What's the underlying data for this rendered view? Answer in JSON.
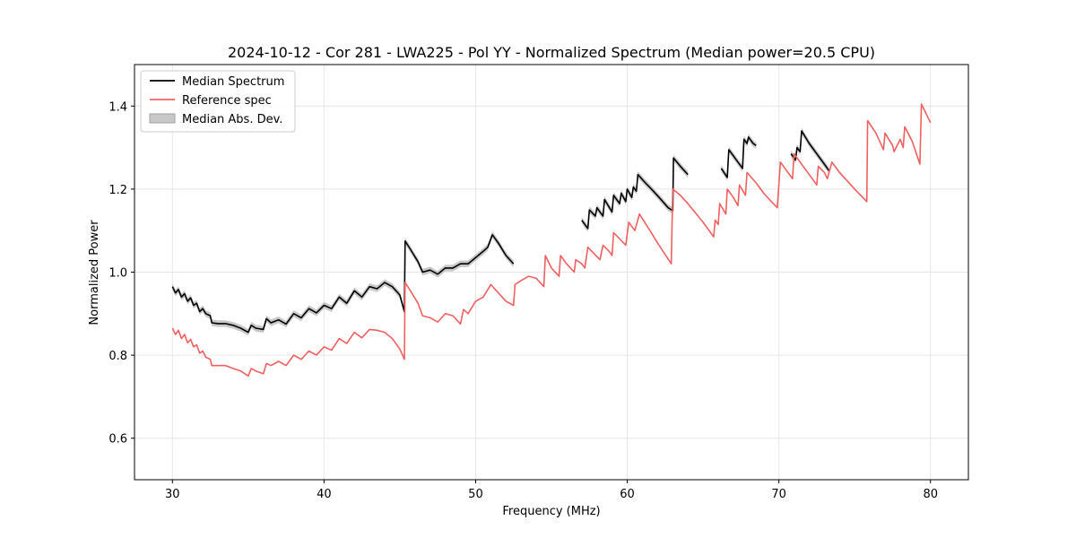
{
  "chart_data": {
    "type": "line",
    "title": "2024-10-12 - Cor 281 - LWA225 - Pol YY - Normalized Spectrum (Median power=20.5 CPU)",
    "xlabel": "Frequency (MHz)",
    "ylabel": "Normalized Power",
    "xlim": [
      27.5,
      82.5
    ],
    "ylim": [
      0.5,
      1.5
    ],
    "xticks": [
      30,
      40,
      50,
      60,
      70,
      80
    ],
    "yticks": [
      0.6,
      0.8,
      1.0,
      1.2,
      1.4
    ],
    "xtick_labels": [
      "30",
      "40",
      "50",
      "60",
      "70",
      "80"
    ],
    "ytick_labels": [
      "0.6",
      "0.8",
      "1.0",
      "1.2",
      "1.4"
    ],
    "grid": true,
    "legend": {
      "placement": "top-left",
      "entries": [
        {
          "label": "Median Spectrum",
          "kind": "line",
          "color": "#000000"
        },
        {
          "label": "Reference spec",
          "kind": "line",
          "color": "#f06060"
        },
        {
          "label": "Median Abs. Dev.",
          "kind": "band",
          "color": "#c8c8c8"
        }
      ]
    },
    "series": [
      {
        "name": "Median Spectrum",
        "color": "#000000",
        "band_color": "#c8c8c8",
        "segments": [
          [
            [
              30.0,
              0.965
            ],
            [
              30.2,
              0.95
            ],
            [
              30.4,
              0.958
            ],
            [
              30.6,
              0.94
            ],
            [
              30.8,
              0.948
            ],
            [
              31.0,
              0.93
            ],
            [
              31.2,
              0.938
            ],
            [
              31.4,
              0.92
            ],
            [
              31.6,
              0.925
            ],
            [
              31.8,
              0.905
            ],
            [
              32.0,
              0.912
            ],
            [
              32.2,
              0.9
            ],
            [
              32.5,
              0.895
            ],
            [
              32.6,
              0.878
            ],
            [
              33.0,
              0.876
            ],
            [
              33.5,
              0.876
            ],
            [
              34.0,
              0.872
            ],
            [
              34.5,
              0.865
            ],
            [
              35.0,
              0.855
            ],
            [
              35.2,
              0.872
            ],
            [
              35.5,
              0.865
            ],
            [
              36.0,
              0.862
            ],
            [
              36.2,
              0.888
            ],
            [
              36.5,
              0.878
            ],
            [
              37.0,
              0.885
            ],
            [
              37.5,
              0.875
            ],
            [
              38.0,
              0.9
            ],
            [
              38.5,
              0.89
            ],
            [
              39.0,
              0.912
            ],
            [
              39.5,
              0.902
            ],
            [
              40.0,
              0.92
            ],
            [
              40.5,
              0.912
            ],
            [
              41.0,
              0.94
            ],
            [
              41.5,
              0.925
            ],
            [
              42.0,
              0.955
            ],
            [
              42.5,
              0.94
            ],
            [
              43.0,
              0.965
            ],
            [
              43.5,
              0.96
            ],
            [
              44.0,
              0.975
            ],
            [
              44.5,
              0.965
            ],
            [
              45.0,
              0.945
            ],
            [
              45.3,
              0.905
            ],
            [
              45.35,
              1.075
            ],
            [
              45.7,
              1.055
            ],
            [
              46.2,
              1.025
            ],
            [
              46.5,
              1.0
            ],
            [
              47.0,
              1.005
            ],
            [
              47.5,
              0.995
            ],
            [
              48.0,
              1.01
            ],
            [
              48.5,
              1.01
            ],
            [
              49.0,
              1.02
            ],
            [
              49.5,
              1.02
            ],
            [
              50.0,
              1.035
            ],
            [
              50.5,
              1.05
            ],
            [
              50.8,
              1.06
            ],
            [
              51.1,
              1.09
            ],
            [
              51.5,
              1.07
            ],
            [
              52.0,
              1.04
            ],
            [
              52.5,
              1.02
            ]
          ],
          [
            [
              57.0,
              1.125
            ],
            [
              57.4,
              1.105
            ],
            [
              57.5,
              1.15
            ],
            [
              57.9,
              1.135
            ],
            [
              58.0,
              1.155
            ],
            [
              58.4,
              1.135
            ],
            [
              58.5,
              1.175
            ],
            [
              59.0,
              1.145
            ],
            [
              59.1,
              1.185
            ],
            [
              59.5,
              1.165
            ],
            [
              59.6,
              1.19
            ],
            [
              59.9,
              1.17
            ],
            [
              60.0,
              1.2
            ],
            [
              60.3,
              1.18
            ],
            [
              60.4,
              1.205
            ],
            [
              60.6,
              1.195
            ],
            [
              60.7,
              1.235
            ],
            [
              61.2,
              1.215
            ],
            [
              61.6,
              1.2
            ],
            [
              62.1,
              1.18
            ],
            [
              62.7,
              1.155
            ],
            [
              63.0,
              1.148
            ],
            [
              63.05,
              1.275
            ],
            [
              63.5,
              1.255
            ],
            [
              64.0,
              1.235
            ]
          ],
          [
            [
              66.2,
              1.25
            ],
            [
              66.6,
              1.228
            ],
            [
              66.7,
              1.295
            ],
            [
              67.1,
              1.275
            ],
            [
              67.6,
              1.25
            ],
            [
              67.7,
              1.32
            ],
            [
              67.9,
              1.31
            ],
            [
              68.0,
              1.325
            ],
            [
              68.3,
              1.31
            ],
            [
              68.5,
              1.305
            ]
          ],
          [
            [
              70.8,
              1.285
            ],
            [
              71.1,
              1.27
            ],
            [
              71.2,
              1.3
            ],
            [
              71.4,
              1.29
            ],
            [
              71.5,
              1.34
            ],
            [
              72.0,
              1.31
            ],
            [
              72.5,
              1.285
            ],
            [
              73.0,
              1.26
            ],
            [
              73.3,
              1.245
            ]
          ]
        ]
      },
      {
        "name": "Reference spec",
        "color": "#f06060",
        "segments": [
          [
            [
              30.0,
              0.865
            ],
            [
              30.2,
              0.85
            ],
            [
              30.4,
              0.86
            ],
            [
              30.6,
              0.84
            ],
            [
              30.8,
              0.85
            ],
            [
              31.0,
              0.83
            ],
            [
              31.2,
              0.838
            ],
            [
              31.4,
              0.82
            ],
            [
              31.6,
              0.825
            ],
            [
              31.8,
              0.805
            ],
            [
              32.0,
              0.81
            ],
            [
              32.2,
              0.795
            ],
            [
              32.5,
              0.79
            ],
            [
              32.6,
              0.775
            ],
            [
              33.0,
              0.775
            ],
            [
              33.5,
              0.775
            ],
            [
              34.0,
              0.768
            ],
            [
              34.5,
              0.762
            ],
            [
              35.0,
              0.75
            ],
            [
              35.2,
              0.768
            ],
            [
              35.5,
              0.762
            ],
            [
              36.0,
              0.755
            ],
            [
              36.2,
              0.78
            ],
            [
              36.5,
              0.775
            ],
            [
              37.0,
              0.785
            ],
            [
              37.5,
              0.775
            ],
            [
              38.0,
              0.8
            ],
            [
              38.5,
              0.79
            ],
            [
              39.0,
              0.81
            ],
            [
              39.5,
              0.8
            ],
            [
              40.0,
              0.82
            ],
            [
              40.5,
              0.812
            ],
            [
              41.0,
              0.84
            ],
            [
              41.5,
              0.828
            ],
            [
              42.0,
              0.855
            ],
            [
              42.5,
              0.842
            ],
            [
              43.0,
              0.862
            ],
            [
              43.5,
              0.86
            ],
            [
              44.0,
              0.855
            ],
            [
              44.5,
              0.84
            ],
            [
              45.0,
              0.815
            ],
            [
              45.3,
              0.79
            ],
            [
              45.35,
              0.975
            ],
            [
              45.7,
              0.955
            ],
            [
              46.2,
              0.925
            ],
            [
              46.5,
              0.895
            ],
            [
              47.0,
              0.89
            ],
            [
              47.5,
              0.88
            ],
            [
              48.0,
              0.9
            ],
            [
              48.5,
              0.895
            ],
            [
              49.0,
              0.875
            ],
            [
              49.2,
              0.91
            ],
            [
              49.5,
              0.9
            ],
            [
              50.0,
              0.93
            ],
            [
              50.5,
              0.94
            ],
            [
              51.0,
              0.97
            ],
            [
              51.5,
              0.95
            ],
            [
              52.0,
              0.93
            ],
            [
              52.5,
              0.92
            ],
            [
              52.6,
              0.97
            ],
            [
              53.0,
              0.98
            ],
            [
              53.5,
              0.99
            ],
            [
              54.0,
              0.985
            ],
            [
              54.5,
              0.965
            ],
            [
              54.6,
              1.04
            ],
            [
              55.0,
              1.01
            ],
            [
              55.5,
              0.99
            ],
            [
              55.6,
              1.04
            ],
            [
              56.0,
              1.02
            ],
            [
              56.5,
              1.0
            ],
            [
              56.6,
              1.03
            ],
            [
              57.0,
              1.02
            ],
            [
              57.2,
              1.01
            ],
            [
              57.4,
              1.06
            ],
            [
              57.8,
              1.045
            ],
            [
              58.2,
              1.03
            ],
            [
              58.4,
              1.065
            ],
            [
              58.8,
              1.05
            ],
            [
              59.0,
              1.04
            ],
            [
              59.1,
              1.095
            ],
            [
              59.5,
              1.08
            ],
            [
              59.9,
              1.065
            ],
            [
              60.1,
              1.12
            ],
            [
              60.5,
              1.1
            ],
            [
              60.8,
              1.14
            ],
            [
              61.5,
              1.1
            ],
            [
              62.0,
              1.07
            ],
            [
              62.9,
              1.02
            ],
            [
              63.0,
              1.2
            ],
            [
              63.5,
              1.185
            ],
            [
              64.0,
              1.165
            ],
            [
              65.0,
              1.12
            ],
            [
              65.7,
              1.085
            ],
            [
              65.8,
              1.125
            ],
            [
              66.0,
              1.115
            ],
            [
              66.1,
              1.165
            ],
            [
              66.5,
              1.14
            ],
            [
              66.6,
              1.2
            ],
            [
              67.0,
              1.18
            ],
            [
              67.3,
              1.16
            ],
            [
              67.4,
              1.21
            ],
            [
              67.8,
              1.185
            ],
            [
              67.9,
              1.24
            ],
            [
              68.5,
              1.215
            ],
            [
              69.0,
              1.19
            ],
            [
              69.5,
              1.17
            ],
            [
              69.9,
              1.155
            ],
            [
              70.1,
              1.265
            ],
            [
              70.6,
              1.24
            ],
            [
              70.9,
              1.225
            ],
            [
              71.0,
              1.285
            ],
            [
              71.5,
              1.26
            ],
            [
              72.0,
              1.235
            ],
            [
              72.5,
              1.21
            ],
            [
              72.6,
              1.255
            ],
            [
              73.0,
              1.24
            ],
            [
              73.2,
              1.225
            ],
            [
              73.5,
              1.265
            ],
            [
              74.0,
              1.24
            ],
            [
              74.5,
              1.22
            ],
            [
              75.0,
              1.2
            ],
            [
              75.8,
              1.17
            ],
            [
              75.85,
              1.365
            ],
            [
              76.4,
              1.335
            ],
            [
              76.9,
              1.295
            ],
            [
              77.0,
              1.335
            ],
            [
              77.5,
              1.305
            ],
            [
              77.6,
              1.29
            ],
            [
              78.0,
              1.32
            ],
            [
              78.2,
              1.3
            ],
            [
              78.3,
              1.35
            ],
            [
              78.8,
              1.315
            ],
            [
              79.3,
              1.26
            ],
            [
              79.4,
              1.405
            ],
            [
              80.0,
              1.36
            ]
          ]
        ]
      }
    ]
  }
}
